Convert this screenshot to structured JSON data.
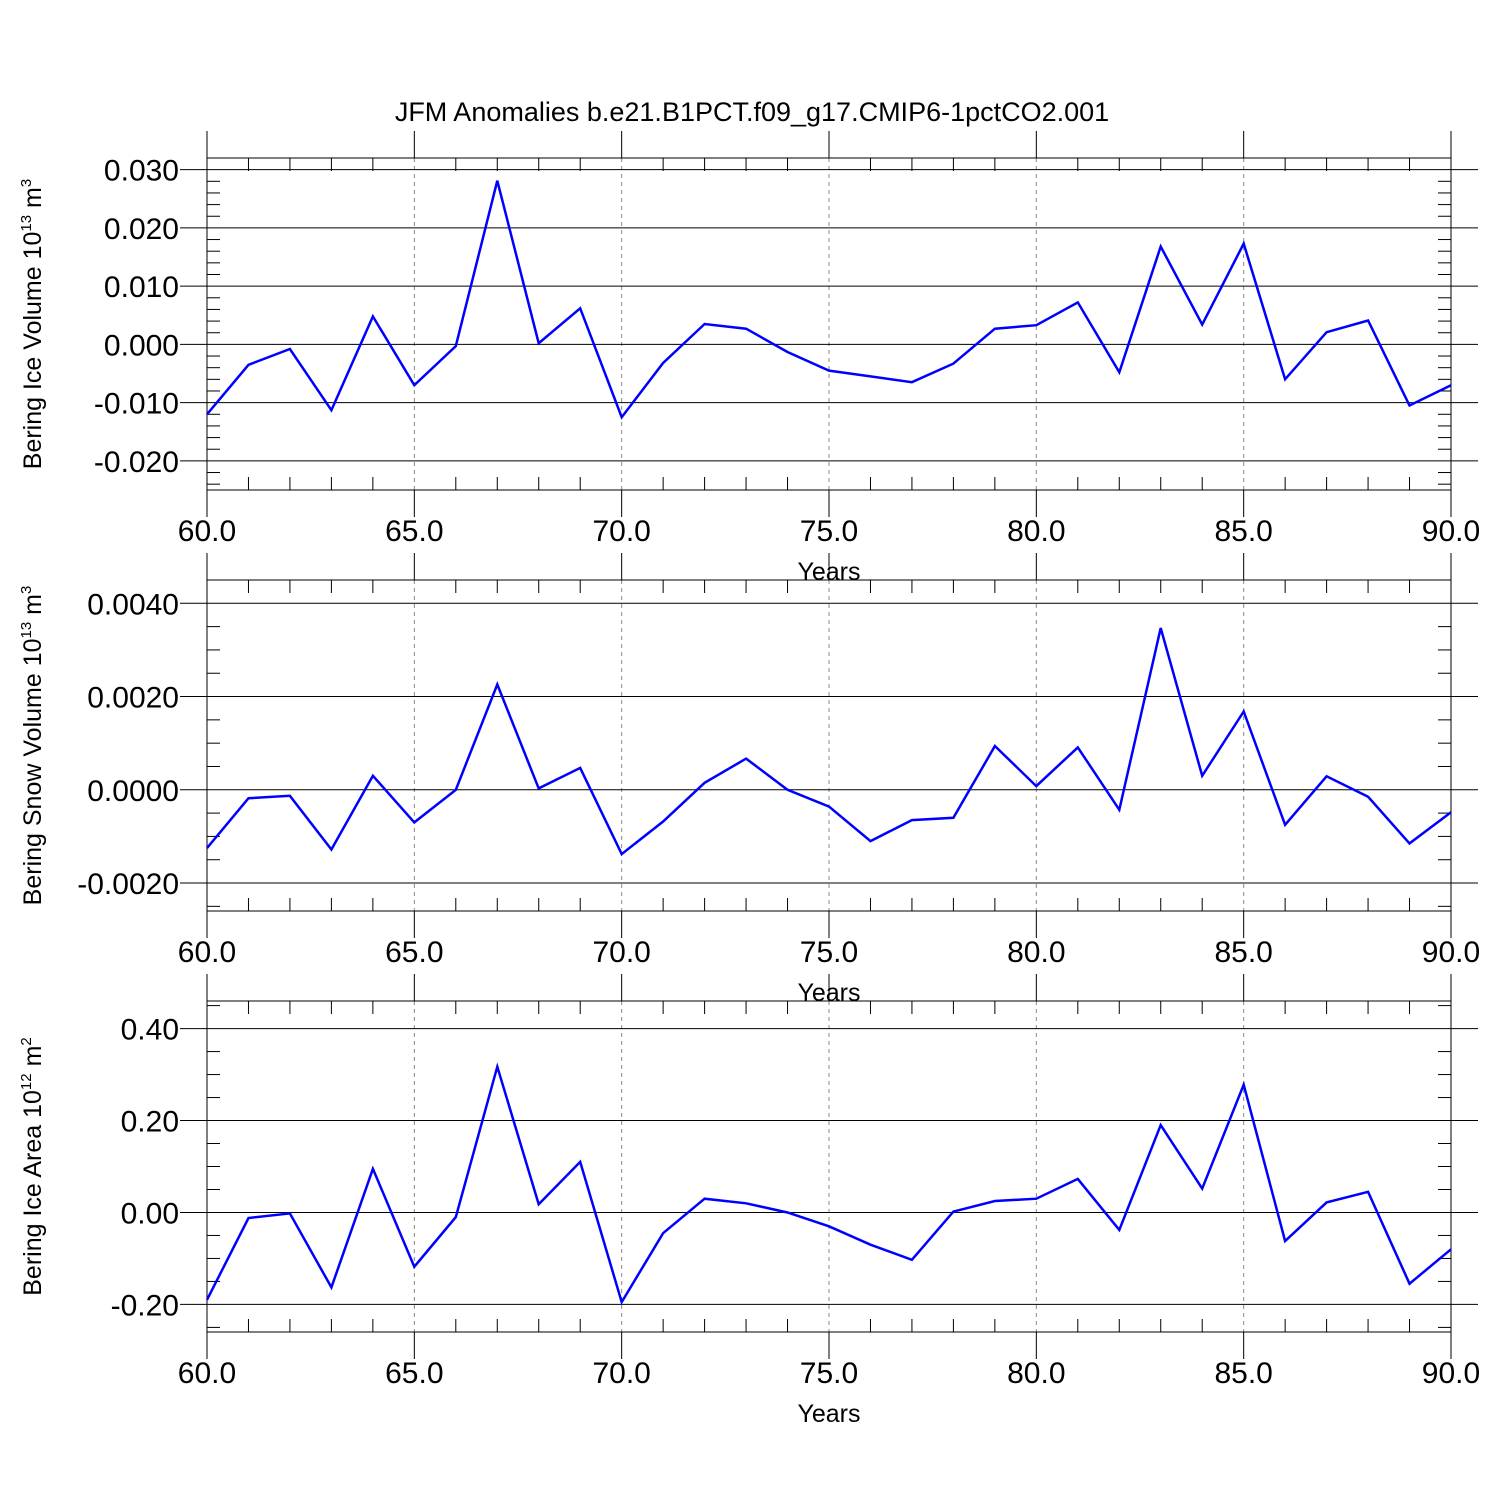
{
  "title": "JFM Anomalies b.e21.B1PCT.f09_g17.CMIP6-1pctCO2.001",
  "colors": {
    "line": "#0000ff",
    "axis": "#000000",
    "grid": "#888888",
    "background": "#ffffff"
  },
  "chart_data": [
    {
      "type": "line",
      "ylabel": "Bering Ice Volume 10",
      "ylabel_exp": "13",
      "ylabel_unit": " m",
      "ylabel_unit_exp": "3",
      "xlabel": "Years",
      "xlim": [
        60,
        90
      ],
      "ylim": [
        -0.025,
        0.032
      ],
      "xticks": [
        "60.0",
        "65.0",
        "70.0",
        "75.0",
        "80.0",
        "85.0",
        "90.0"
      ],
      "yticks": [
        "-0.020",
        "-0.010",
        "0.000",
        "0.010",
        "0.020",
        "0.030"
      ],
      "ytick_values": [
        -0.02,
        -0.01,
        0.0,
        0.01,
        0.02,
        0.03
      ],
      "ytick_minor_step": 0.002,
      "x": [
        60,
        61,
        62,
        63,
        64,
        65,
        66,
        67,
        68,
        69,
        70,
        71,
        72,
        73,
        74,
        75,
        76,
        77,
        78,
        79,
        80,
        81,
        82,
        83,
        84,
        85,
        86,
        87,
        88,
        89,
        90
      ],
      "values": [
        -0.012,
        -0.0035,
        -0.0008,
        -0.0113,
        0.0048,
        -0.007,
        -0.0003,
        0.0281,
        0.0002,
        0.0062,
        -0.0125,
        -0.0032,
        0.0035,
        0.0027,
        -0.0013,
        -0.0045,
        -0.0055,
        -0.0065,
        -0.0033,
        0.0027,
        0.0033,
        0.0072,
        -0.0048,
        0.0168,
        0.0034,
        0.0173,
        -0.006,
        0.0021,
        0.0041,
        -0.0105,
        -0.007
      ]
    },
    {
      "type": "line",
      "ylabel": "Bering Snow Volume 10",
      "ylabel_exp": "13",
      "ylabel_unit": " m",
      "ylabel_unit_exp": "3",
      "xlabel": "Years",
      "xlim": [
        60,
        90
      ],
      "ylim": [
        -0.0026,
        0.0045
      ],
      "xticks": [
        "60.0",
        "65.0",
        "70.0",
        "75.0",
        "80.0",
        "85.0",
        "90.0"
      ],
      "yticks": [
        "-0.0020",
        "0.0000",
        "0.0020",
        "0.0040"
      ],
      "ytick_values": [
        -0.002,
        0.0,
        0.002,
        0.004
      ],
      "ytick_minor_step": 0.0005,
      "x": [
        60,
        61,
        62,
        63,
        64,
        65,
        66,
        67,
        68,
        69,
        70,
        71,
        72,
        73,
        74,
        75,
        76,
        77,
        78,
        79,
        80,
        81,
        82,
        83,
        84,
        85,
        86,
        87,
        88,
        89,
        90
      ],
      "values": [
        -0.00125,
        -0.00018,
        -0.00013,
        -0.00128,
        0.0003,
        -0.0007,
        0.0,
        0.00226,
        3e-05,
        0.00047,
        -0.00138,
        -0.00068,
        0.00015,
        0.00067,
        0.0,
        -0.00036,
        -0.0011,
        -0.00065,
        -0.0006,
        0.00094,
        8e-05,
        0.00091,
        -0.00043,
        0.00347,
        0.0003,
        0.00168,
        -0.00075,
        0.00029,
        -0.00015,
        -0.00115,
        -0.00048
      ]
    },
    {
      "type": "line",
      "ylabel": "Bering Ice Area 10",
      "ylabel_exp": "12",
      "ylabel_unit": " m",
      "ylabel_unit_exp": "2",
      "xlabel": "Years",
      "xlim": [
        60,
        90
      ],
      "ylim": [
        -0.26,
        0.46
      ],
      "xticks": [
        "60.0",
        "65.0",
        "70.0",
        "75.0",
        "80.0",
        "85.0",
        "90.0"
      ],
      "yticks": [
        "-0.20",
        "0.00",
        "0.20",
        "0.40"
      ],
      "ytick_values": [
        -0.2,
        0.0,
        0.2,
        0.4
      ],
      "ytick_minor_step": 0.05,
      "x": [
        60,
        61,
        62,
        63,
        64,
        65,
        66,
        67,
        68,
        69,
        70,
        71,
        72,
        73,
        74,
        75,
        76,
        77,
        78,
        79,
        80,
        81,
        82,
        83,
        84,
        85,
        86,
        87,
        88,
        89,
        90
      ],
      "values": [
        -0.19,
        -0.012,
        -0.002,
        -0.163,
        0.095,
        -0.118,
        -0.01,
        0.317,
        0.018,
        0.11,
        -0.195,
        -0.045,
        0.03,
        0.02,
        0.0,
        -0.03,
        -0.07,
        -0.103,
        0.002,
        0.025,
        0.03,
        0.073,
        -0.038,
        0.19,
        0.052,
        0.278,
        -0.062,
        0.022,
        0.045,
        -0.155,
        -0.08
      ]
    }
  ]
}
